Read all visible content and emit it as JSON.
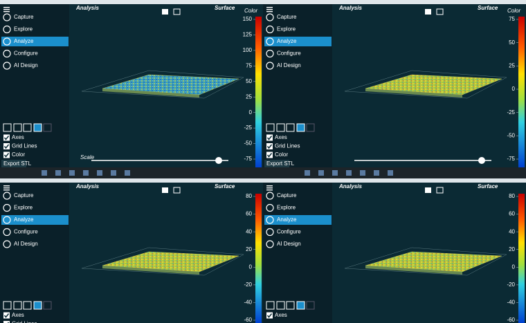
{
  "panels": [
    {
      "menu": [
        "Capture",
        "Explore",
        "Analyze",
        "Configure",
        "AI Design"
      ],
      "active_index": 2,
      "header": "Analysis",
      "view": "Surface",
      "colorbar_label": "Color",
      "colorbar_ticks": [
        150,
        125,
        100,
        75,
        50,
        25,
        0,
        -25,
        -50,
        -75
      ],
      "options": [
        "Axes",
        "Grid Lines",
        "Color"
      ],
      "export": "Export STL",
      "scale_label": "Scale"
    },
    {
      "menu": [
        "Capture",
        "Explore",
        "Analyze",
        "Configure",
        "AI Design"
      ],
      "active_index": 2,
      "header": "Analysis",
      "view": "Surface",
      "colorbar_label": "Color",
      "colorbar_ticks": [
        75,
        50,
        25,
        0,
        -25,
        -50,
        -75
      ],
      "options": [
        "Axes",
        "Grid Lines",
        "Color"
      ],
      "export": "Export STL"
    },
    {
      "menu": [
        "Capture",
        "Explore",
        "Analyze",
        "Configure",
        "AI Design"
      ],
      "active_index": 2,
      "header": "Analysis",
      "view": "Surface",
      "colorbar_ticks": [
        80,
        60,
        40,
        20,
        0,
        -20,
        -40,
        -60
      ],
      "options": [
        "Axes",
        "Grid Lines"
      ]
    },
    {
      "menu": [
        "Capture",
        "Explore",
        "Analyze",
        "Configure",
        "AI Design"
      ],
      "active_index": 2,
      "header": "Analysis",
      "view": "Surface",
      "colorbar_ticks": [
        80,
        60,
        40,
        20,
        0,
        -20,
        -40,
        -60
      ],
      "options": [
        "Axes"
      ]
    }
  ]
}
